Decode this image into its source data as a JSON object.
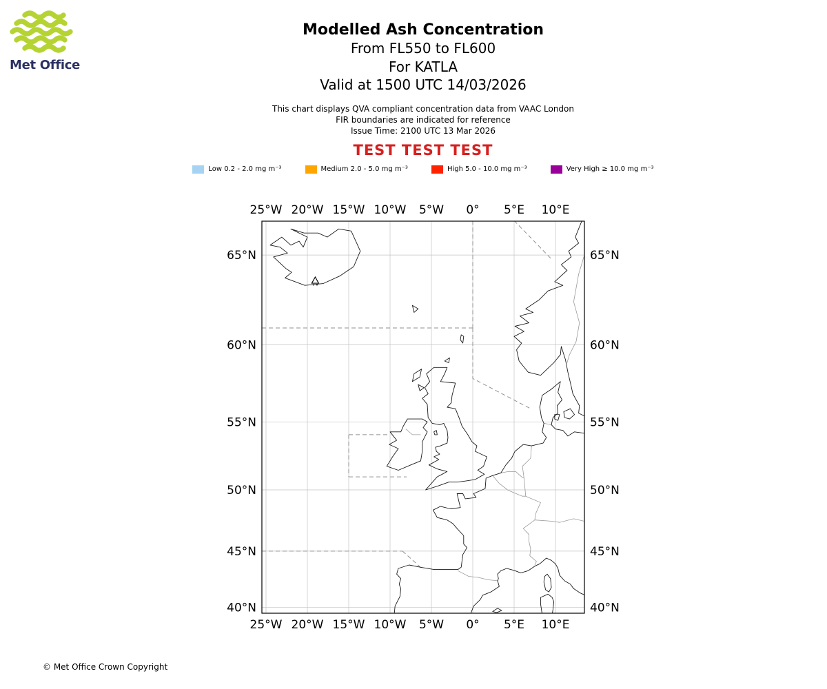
{
  "logo": {
    "brand": "Met Office",
    "wave_color": "#b5d333",
    "text_color": "#2b3063"
  },
  "header": {
    "title": "Modelled Ash Concentration",
    "subtitles": [
      "From FL550 to FL600",
      "For KATLA",
      "Valid at 1500 UTC 14/03/2026"
    ],
    "notes": [
      "This chart displays QVA compliant concentration data from VAAC London",
      "FIR boundaries are indicated for reference",
      "Issue Time: 2100 UTC 13 Mar 2026"
    ],
    "test_banner": {
      "text": "TEST TEST TEST",
      "color": "#d62020"
    }
  },
  "legend": {
    "items": [
      {
        "label": "Low 0.2 - 2.0 mg m⁻³",
        "color": "#a7d3f2"
      },
      {
        "label": "Medium 2.0 - 5.0 mg m⁻³",
        "color": "#ffa500"
      },
      {
        "label": "High 5.0 - 10.0 mg m⁻³",
        "color": "#ff2200"
      },
      {
        "label": "Very High ≥ 10.0 mg m⁻³",
        "color": "#990099"
      }
    ]
  },
  "map": {
    "lon_ticks": [
      {
        "deg": -25,
        "label": "25°W"
      },
      {
        "deg": -20,
        "label": "20°W"
      },
      {
        "deg": -15,
        "label": "15°W"
      },
      {
        "deg": -10,
        "label": "10°W"
      },
      {
        "deg": -5,
        "label": "5°W"
      },
      {
        "deg": 0,
        "label": "0°"
      },
      {
        "deg": 5,
        "label": "5°E"
      },
      {
        "deg": 10,
        "label": "10°E"
      }
    ],
    "lat_ticks": [
      {
        "deg": 65,
        "label": "65°N"
      },
      {
        "deg": 60,
        "label": "60°N"
      },
      {
        "deg": 55,
        "label": "55°N"
      },
      {
        "deg": 50,
        "label": "50°N"
      },
      {
        "deg": 45,
        "label": "45°N"
      },
      {
        "deg": 40,
        "label": "40°N"
      }
    ],
    "volcano": {
      "name": "KATLA",
      "lon": -19.05,
      "lat": 63.63
    }
  },
  "footer": {
    "copyright": "© Met Office Crown Copyright"
  }
}
